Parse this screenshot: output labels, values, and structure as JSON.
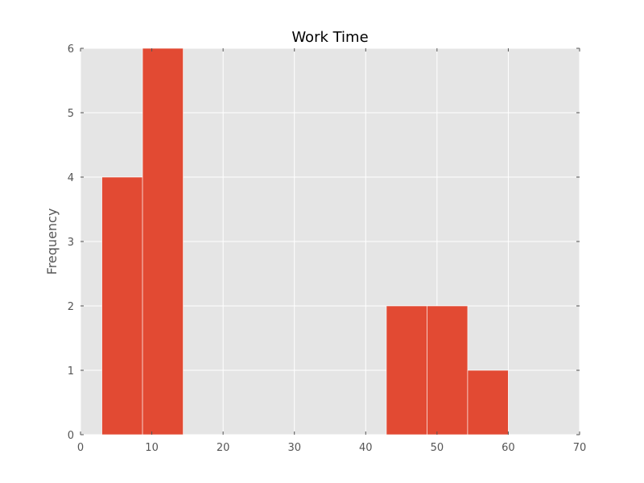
{
  "chart_data": {
    "type": "bar",
    "subtype": "histogram",
    "title": "Work Time",
    "xlabel": "",
    "ylabel": "Frequency",
    "xlim": [
      0,
      70
    ],
    "ylim": [
      0,
      6
    ],
    "xticks": [
      0,
      10,
      20,
      30,
      40,
      50,
      60,
      70
    ],
    "yticks": [
      0,
      1,
      2,
      3,
      4,
      5,
      6
    ],
    "grid": true,
    "bins": [
      {
        "x0": 3.0,
        "x1": 8.7,
        "count": 4
      },
      {
        "x0": 8.7,
        "x1": 14.4,
        "count": 6
      },
      {
        "x0": 14.4,
        "x1": 20.1,
        "count": 0
      },
      {
        "x0": 20.1,
        "x1": 25.8,
        "count": 0
      },
      {
        "x0": 25.8,
        "x1": 31.5,
        "count": 0
      },
      {
        "x0": 31.5,
        "x1": 37.2,
        "count": 0
      },
      {
        "x0": 37.2,
        "x1": 42.9,
        "count": 0
      },
      {
        "x0": 42.9,
        "x1": 48.6,
        "count": 2
      },
      {
        "x0": 48.6,
        "x1": 54.3,
        "count": 2
      },
      {
        "x0": 54.3,
        "x1": 60.0,
        "count": 1
      }
    ],
    "colors": {
      "bar": "#E24A33",
      "plot_background": "#E5E5E5",
      "grid": "#FFFFFF",
      "tick_text": "#555555",
      "title_text": "#000000"
    }
  }
}
